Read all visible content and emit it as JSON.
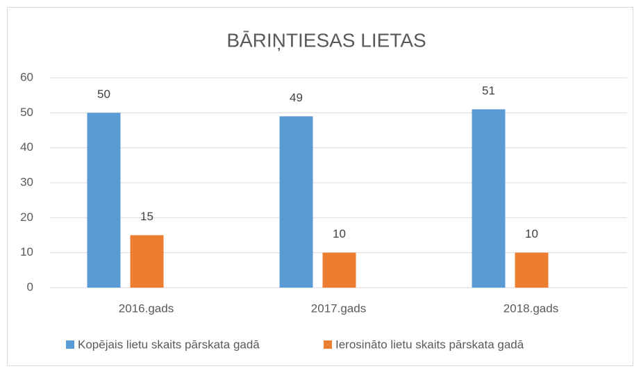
{
  "chart_data": {
    "type": "bar",
    "title": "BĀRIŅTIESAS LIETAS",
    "categories": [
      "2016.gads",
      "2017.gads",
      "2018.gads"
    ],
    "series": [
      {
        "name": "Kopējais lietu skaits pārskata gadā",
        "color": "#5b9bd5",
        "values": [
          50,
          49,
          51
        ]
      },
      {
        "name": "Ierosināto lietu skaits pārskata gadā",
        "color": "#ed7d31",
        "values": [
          15,
          10,
          10
        ]
      }
    ],
    "ylim": [
      0,
      60
    ],
    "yticks": [
      0,
      10,
      20,
      30,
      40,
      50,
      60
    ],
    "grid": true,
    "legend": "bottom"
  }
}
